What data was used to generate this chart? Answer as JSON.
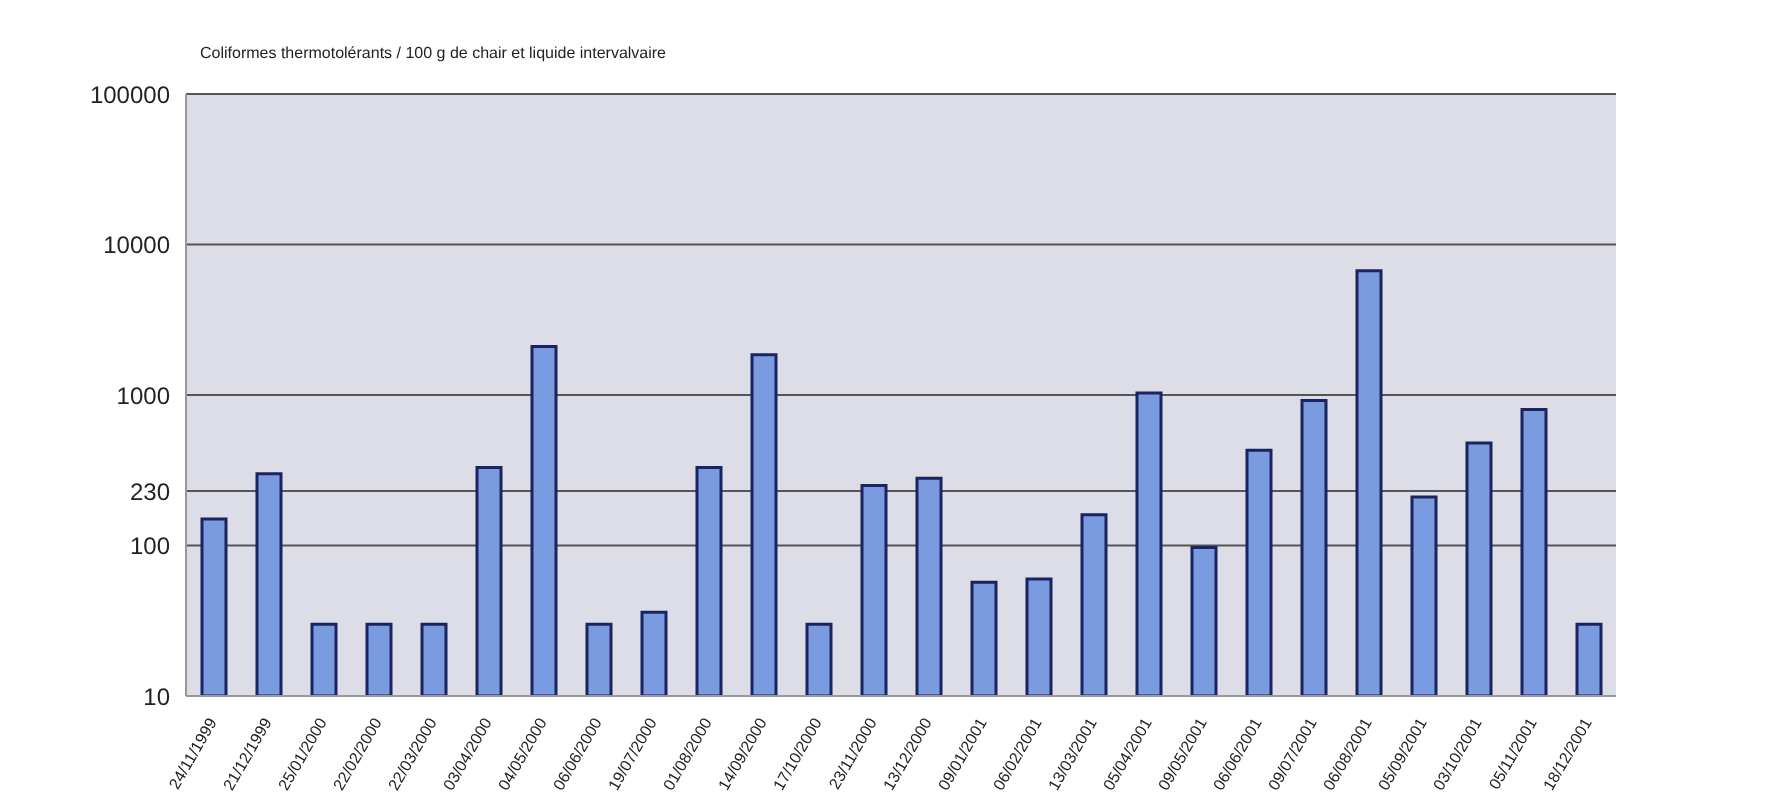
{
  "chart_data": {
    "type": "bar",
    "title": "Coliformes thermotolérants / 100 g de chair et liquide intervalvaire",
    "categories": [
      "24/11/1999",
      "21/12/1999",
      "25/01/2000",
      "22/02/2000",
      "22/03/2000",
      "03/04/2000",
      "04/05/2000",
      "06/06/2000",
      "19/07/2000",
      "01/08/2000",
      "14/09/2000",
      "17/10/2000",
      "23/11/2000",
      "13/12/2000",
      "09/01/2001",
      "06/02/2001",
      "13/03/2001",
      "05/04/2001",
      "09/05/2001",
      "06/06/2001",
      "09/07/2001",
      "06/08/2001",
      "05/09/2001",
      "03/10/2001",
      "05/11/2001",
      "18/12/2001"
    ],
    "values": [
      150,
      300,
      30,
      30,
      30,
      330,
      2100,
      30,
      36,
      330,
      1850,
      30,
      250,
      280,
      57,
      60,
      160,
      1030,
      97,
      430,
      920,
      6700,
      210,
      480,
      800,
      30
    ],
    "color": "#7b9be0",
    "log": true,
    "ylim": [
      10,
      100000
    ],
    "yticks": [
      10,
      100,
      230,
      1000,
      10000,
      100000
    ],
    "grid": "y"
  }
}
